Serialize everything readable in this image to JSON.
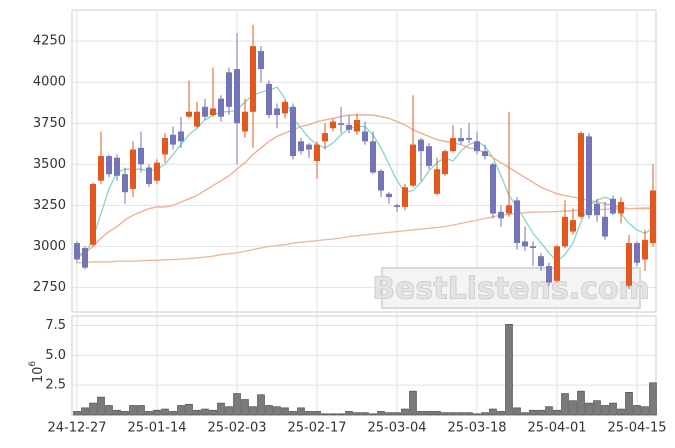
{
  "chart_data": [
    {
      "type": "candlestick",
      "categories": [
        "24-12-27",
        null,
        null,
        null,
        null,
        null,
        null,
        null,
        null,
        null,
        "25-01-14",
        null,
        null,
        null,
        null,
        null,
        null,
        null,
        null,
        null,
        "25-02-03",
        null,
        null,
        null,
        null,
        null,
        null,
        null,
        null,
        null,
        "25-02-17",
        null,
        null,
        null,
        null,
        null,
        null,
        null,
        null,
        null,
        "25-03-04",
        null,
        null,
        null,
        null,
        null,
        null,
        null,
        null,
        null,
        "25-03-18",
        null,
        null,
        null,
        null,
        null,
        null,
        null,
        null,
        null,
        "25-04-01",
        null,
        null,
        null,
        null,
        null,
        null,
        null,
        null,
        null,
        "25-04-15",
        null,
        null
      ],
      "open": [
        3020,
        2990,
        3010,
        3400,
        3550,
        3540,
        3440,
        3350,
        3600,
        3480,
        3400,
        3560,
        3680,
        3700,
        3790,
        3730,
        3850,
        3800,
        3900,
        4060,
        4080,
        3700,
        3820,
        4190,
        3990,
        3840,
        3810,
        3850,
        3640,
        3620,
        3520,
        3640,
        3720,
        3750,
        3740,
        3700,
        3700,
        3640,
        3460,
        3320,
        3250,
        3240,
        3370,
        3650,
        3610,
        3320,
        3440,
        3580,
        3660,
        3660,
        3640,
        3580,
        3500,
        3210,
        3200,
        3280,
        3030,
        3000,
        2940,
        2880,
        2790,
        3000,
        3090,
        3180,
        3670,
        3260,
        3180,
        3290,
        3200,
        2760,
        3020,
        2920,
        3020
      ],
      "high": [
        3030,
        3000,
        3390,
        3700,
        3560,
        3560,
        3480,
        3640,
        3700,
        3500,
        3530,
        3690,
        3730,
        3790,
        4010,
        3880,
        3900,
        4090,
        3920,
        4090,
        4300,
        3900,
        4350,
        4220,
        4010,
        3870,
        3890,
        3870,
        3660,
        3630,
        3640,
        3750,
        3780,
        3850,
        3800,
        3810,
        3760,
        3700,
        3470,
        3330,
        3260,
        3380,
        3920,
        3660,
        3630,
        3540,
        3590,
        3740,
        3720,
        3750,
        3700,
        3620,
        3510,
        3250,
        3820,
        3300,
        3120,
        3030,
        2960,
        2900,
        3010,
        3280,
        3230,
        3700,
        3690,
        3290,
        3270,
        3310,
        3300,
        3070,
        3030,
        3100,
        3500
      ],
      "low": [
        2900,
        2860,
        3000,
        3380,
        3420,
        3400,
        3260,
        3300,
        3450,
        3360,
        3380,
        3510,
        3590,
        3600,
        3780,
        3720,
        3770,
        3790,
        3760,
        3800,
        3500,
        3660,
        3600,
        4000,
        3780,
        3720,
        3780,
        3530,
        3560,
        3540,
        3410,
        3590,
        3700,
        3690,
        3690,
        3680,
        3620,
        3440,
        3300,
        3260,
        3210,
        3220,
        3360,
        3400,
        3470,
        3310,
        3430,
        3570,
        3620,
        3630,
        3560,
        3530,
        3170,
        3120,
        3180,
        2980,
        2970,
        2880,
        2850,
        2760,
        2780,
        2990,
        3070,
        3170,
        3170,
        3150,
        3040,
        3190,
        3140,
        2740,
        2880,
        2850,
        3000
      ],
      "close": [
        2920,
        2870,
        3380,
        3550,
        3440,
        3430,
        3330,
        3590,
        3500,
        3380,
        3510,
        3660,
        3620,
        3640,
        3820,
        3820,
        3790,
        3840,
        3790,
        3850,
        3750,
        3820,
        4220,
        4080,
        3800,
        3800,
        3880,
        3550,
        3580,
        3590,
        3620,
        3690,
        3760,
        3740,
        3710,
        3770,
        3640,
        3450,
        3340,
        3300,
        3240,
        3360,
        3620,
        3580,
        3490,
        3470,
        3580,
        3660,
        3640,
        3650,
        3580,
        3550,
        3200,
        3170,
        3250,
        3020,
        3000,
        2990,
        2880,
        2780,
        3000,
        3180,
        3160,
        3690,
        3190,
        3190,
        3060,
        3200,
        3270,
        3020,
        2900,
        3040,
        3340
      ],
      "up_color": "#e2581f",
      "down_color": "#7474b8",
      "series": [
        {
          "color": "#86d6c4",
          "values": [
            2960,
            2950,
            3050,
            3200,
            3350,
            3450,
            3470,
            3470,
            3470,
            3460,
            3470,
            3500,
            3560,
            3620,
            3680,
            3720,
            3770,
            3800,
            3820,
            3820,
            3830,
            3880,
            3920,
            3940,
            3950,
            3970,
            3900,
            3780,
            3720,
            3660,
            3620,
            3600,
            3630,
            3680,
            3720,
            3730,
            3730,
            3680,
            3600,
            3500,
            3400,
            3330,
            3340,
            3390,
            3460,
            3510,
            3540,
            3520,
            3580,
            3620,
            3640,
            3610,
            3540,
            3430,
            3310,
            3240,
            3160,
            3080,
            3020,
            2960,
            2910,
            2950,
            3020,
            3150,
            3250,
            3280,
            3300,
            3280,
            3200,
            3140,
            3100,
            3080,
            3110
          ]
        },
        {
          "color": "#f0aa8c",
          "values": [
            2930,
            2960,
            3000,
            3050,
            3090,
            3120,
            3160,
            3190,
            3210,
            3230,
            3240,
            3240,
            3250,
            3270,
            3290,
            3310,
            3340,
            3370,
            3400,
            3430,
            3470,
            3510,
            3560,
            3600,
            3640,
            3670,
            3690,
            3710,
            3730,
            3740,
            3760,
            3770,
            3780,
            3790,
            3800,
            3800,
            3800,
            3800,
            3790,
            3780,
            3760,
            3740,
            3710,
            3690,
            3670,
            3650,
            3640,
            3630,
            3620,
            3600,
            3590,
            3570,
            3540,
            3510,
            3480,
            3450,
            3420,
            3390,
            3360,
            3340,
            3320,
            3310,
            3300,
            3290,
            3280,
            3270,
            3260,
            3250,
            3240,
            3230,
            3230,
            3230,
            3230
          ]
        },
        {
          "color": "#e9b99c",
          "values": [
            2900,
            2900,
            2905,
            2905,
            2905,
            2910,
            2910,
            2910,
            2912,
            2915,
            2915,
            2918,
            2920,
            2922,
            2925,
            2930,
            2935,
            2940,
            2950,
            2955,
            2960,
            2970,
            2980,
            2990,
            3000,
            3005,
            3010,
            3020,
            3025,
            3030,
            3035,
            3040,
            3045,
            3050,
            3060,
            3065,
            3070,
            3075,
            3080,
            3085,
            3090,
            3095,
            3100,
            3105,
            3110,
            3115,
            3120,
            3130,
            3140,
            3150,
            3160,
            3170,
            3180,
            3190,
            3195,
            3200,
            3205,
            3208,
            3210,
            3210,
            3212,
            3215,
            3218,
            3220,
            3222,
            3224,
            3226,
            3228,
            3230,
            3230,
            3232,
            3234,
            3235
          ]
        }
      ],
      "ylim": [
        2600,
        4440
      ],
      "yticks": [
        2750,
        3000,
        3250,
        3500,
        3750,
        4000,
        4250
      ],
      "grid": true,
      "watermark": "BestListens.com"
    },
    {
      "type": "bar",
      "values": [
        0.3,
        0.6,
        1.0,
        1.5,
        0.8,
        0.4,
        0.3,
        0.8,
        0.8,
        0.3,
        0.4,
        0.5,
        0.3,
        0.8,
        0.9,
        0.4,
        0.5,
        0.4,
        1.0,
        0.7,
        1.8,
        1.3,
        0.7,
        1.7,
        0.8,
        0.7,
        0.6,
        0.3,
        0.6,
        0.3,
        0.3,
        0.1,
        0.1,
        0.1,
        0.3,
        0.2,
        0.2,
        0.1,
        0.3,
        0.2,
        0.2,
        0.5,
        2.0,
        0.3,
        0.3,
        0.3,
        0.2,
        0.2,
        0.2,
        0.2,
        0.1,
        0.2,
        0.5,
        0.3,
        7.6,
        0.6,
        0.2,
        0.4,
        0.4,
        0.7,
        0.4,
        1.8,
        1.2,
        2.0,
        1.0,
        1.2,
        0.8,
        1.0,
        0.5,
        1.9,
        0.8,
        0.7,
        2.7
      ],
      "color": "#7a7a7a",
      "ylim": [
        0,
        8.3
      ],
      "yticks": [
        2.5,
        {
          "value": 5,
          "label": "5.0"
        },
        7.5
      ],
      "ylabel": {
        "base": "10",
        "exponent": "6"
      },
      "grid": true
    }
  ]
}
